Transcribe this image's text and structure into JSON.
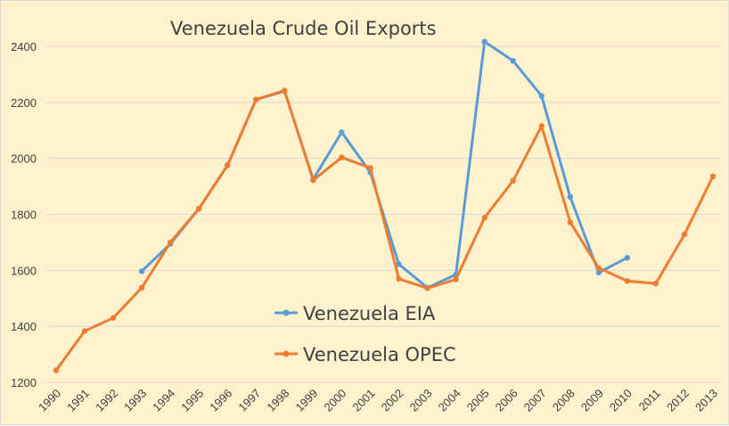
{
  "chart_data": {
    "type": "line",
    "title": "Venezuela Crude Oil Exports",
    "xlabel": "",
    "ylabel": "",
    "x": [
      "1990",
      "1991",
      "1992",
      "1993",
      "1994",
      "1995",
      "1996",
      "1997",
      "1998",
      "1999",
      "2000",
      "2001",
      "2002",
      "2003",
      "2004",
      "2005",
      "2006",
      "2007",
      "2008",
      "2009",
      "2010",
      "2011",
      "2012",
      "2013"
    ],
    "ylim": [
      1200,
      2400
    ],
    "yticks": [
      1200,
      1400,
      1600,
      1800,
      2000,
      2200,
      2400
    ],
    "grid": "horizontal",
    "legend_position": "center",
    "series": [
      {
        "name": "Venezuela EIA",
        "color": "#5B9BD5",
        "values": [
          null,
          null,
          null,
          1597,
          1695,
          1820,
          1975,
          2210,
          2240,
          1925,
          2093,
          1950,
          1622,
          1538,
          1585,
          2417,
          2348,
          2223,
          1862,
          1592,
          1645,
          null,
          null,
          null
        ]
      },
      {
        "name": "Venezuela OPEC",
        "color": "#ED7D31",
        "values": [
          1243,
          1383,
          1430,
          1538,
          1700,
          1820,
          1975,
          2210,
          2242,
          1922,
          2003,
          1966,
          1570,
          1536,
          1568,
          1788,
          1920,
          2115,
          1772,
          1608,
          1562,
          1553,
          1728,
          1936
        ]
      }
    ]
  }
}
